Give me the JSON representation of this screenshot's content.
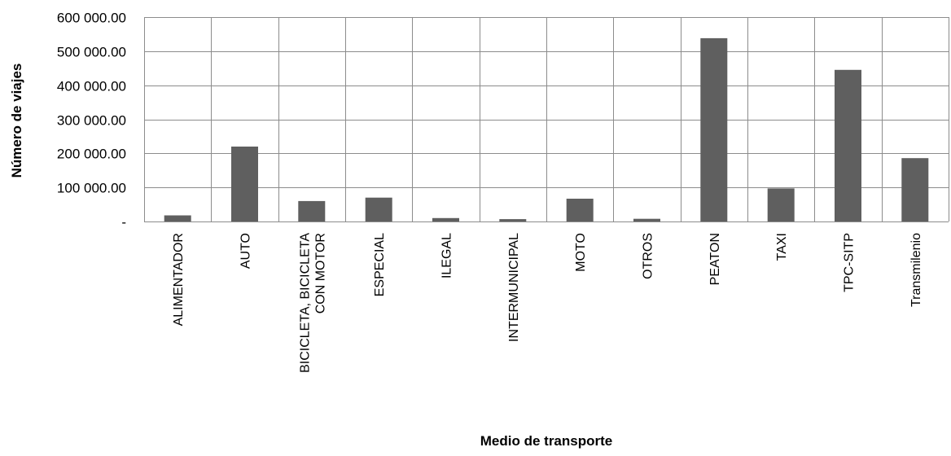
{
  "chart_data": {
    "type": "bar",
    "title": "",
    "xlabel": "Medio de transporte",
    "ylabel": "Número de viajes",
    "ylim": [
      0,
      600000
    ],
    "yticks": [
      {
        "value": 0,
        "label": "-"
      },
      {
        "value": 100000,
        "label": "100 000.00"
      },
      {
        "value": 200000,
        "label": "200 000.00"
      },
      {
        "value": 300000,
        "label": "300 000.00"
      },
      {
        "value": 400000,
        "label": "400 000.00"
      },
      {
        "value": 500000,
        "label": "500 000.00"
      },
      {
        "value": 600000,
        "label": "600 000.00"
      }
    ],
    "categories": [
      [
        "ALIMENTADOR"
      ],
      [
        "AUTO"
      ],
      [
        "BICICLETA, BICICLETA",
        "CON MOTOR"
      ],
      [
        "ESPECIAL"
      ],
      [
        "ILEGAL"
      ],
      [
        "INTERMUNICIPAL"
      ],
      [
        "MOTO"
      ],
      [
        "OTROS"
      ],
      [
        "PEATON"
      ],
      [
        "TAXI"
      ],
      [
        "TPC-SITP"
      ],
      [
        "Transmilenio"
      ]
    ],
    "values": [
      18000,
      220000,
      60000,
      70000,
      10000,
      7000,
      67000,
      8000,
      538000,
      97000,
      445000,
      186000
    ],
    "grid": true,
    "legend": "none",
    "bar_color": "#5f5f5f",
    "grid_color": "#8c8c8c"
  }
}
